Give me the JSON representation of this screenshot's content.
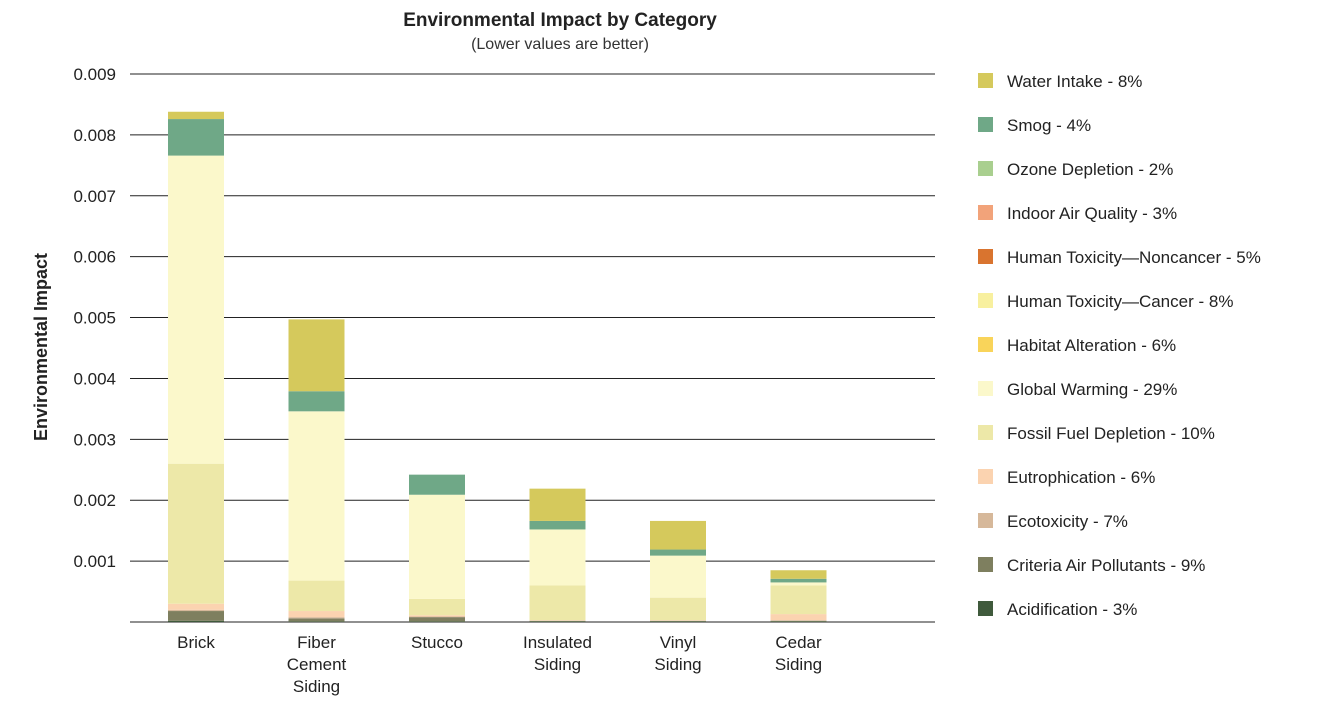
{
  "chart_data": {
    "type": "bar",
    "stacked": true,
    "title": "Environmental Impact by Category",
    "subtitle": "(Lower values are better)",
    "xlabel": "",
    "ylabel": "Environmental Impact",
    "ylim": [
      0,
      0.009
    ],
    "yticks": [
      "0.001",
      "0.002",
      "0.003",
      "0.004",
      "0.005",
      "0.006",
      "0.007",
      "0.008",
      "0.009"
    ],
    "grid": true,
    "legend_position": "right",
    "categories": [
      [
        "Brick"
      ],
      [
        "Fiber",
        "Cement",
        "Siding"
      ],
      [
        "Stucco"
      ],
      [
        "Insulated",
        "Siding"
      ],
      [
        "Vinyl",
        "Siding"
      ],
      [
        "Cedar",
        "Siding"
      ]
    ],
    "series": [
      {
        "name": "Acidification - 3%",
        "color": "#3f5a3c",
        "values": [
          2e-05,
          1e-05,
          1e-05,
          1e-05,
          1e-05,
          1e-05
        ]
      },
      {
        "name": "Criteria Air Pollutants - 9%",
        "color": "#7e7f5f",
        "values": [
          0.00016,
          5e-05,
          7e-05,
          1e-05,
          1e-05,
          1e-05
        ]
      },
      {
        "name": "Ecotoxicity - 7%",
        "color": "#d6b89a",
        "values": [
          2e-05,
          2e-05,
          1e-05,
          0.0,
          0.0,
          1e-05
        ]
      },
      {
        "name": "Eutrophication - 6%",
        "color": "#fbd3b0",
        "values": [
          0.0001,
          0.0001,
          2e-05,
          1e-05,
          1e-05,
          0.0001
        ]
      },
      {
        "name": "Fossil Fuel Depletion - 10%",
        "color": "#ede8a8",
        "values": [
          0.0023,
          0.0005,
          0.00027,
          0.00057,
          0.00037,
          0.00047
        ]
      },
      {
        "name": "Global Warming - 29%",
        "color": "#fbf8cb",
        "values": [
          0.00506,
          0.00278,
          0.00171,
          0.00092,
          0.00069,
          5e-05
        ]
      },
      {
        "name": "Habitat Alteration - 6%",
        "color": "#f9d45a",
        "values": [
          0.0,
          0.0,
          0.0,
          0.0,
          0.0,
          0.0
        ]
      },
      {
        "name": "Human Toxicity—Cancer - 8%",
        "color": "#f8f09f",
        "values": [
          0.0,
          0.0,
          0.0,
          0.0,
          0.0,
          0.0
        ]
      },
      {
        "name": "Human Toxicity—Noncancer - 5%",
        "color": "#d9742f",
        "values": [
          0.0,
          0.0,
          0.0,
          0.0,
          0.0,
          0.0
        ]
      },
      {
        "name": "Indoor Air Quality - 3%",
        "color": "#f2a37a",
        "values": [
          0.0,
          0.0,
          0.0,
          0.0,
          0.0,
          0.0
        ]
      },
      {
        "name": "Ozone Depletion - 2%",
        "color": "#a9cf8f",
        "values": [
          0.0,
          0.0,
          0.0,
          0.0,
          0.0,
          0.0
        ]
      },
      {
        "name": "Smog - 4%",
        "color": "#6fa887",
        "values": [
          0.0006,
          0.00033,
          0.00033,
          0.00014,
          0.0001,
          6e-05
        ]
      },
      {
        "name": "Water Intake - 8%",
        "color": "#d5c95c",
        "values": [
          0.00012,
          0.00118,
          0.0,
          0.00053,
          0.00047,
          0.00014
        ]
      }
    ]
  }
}
